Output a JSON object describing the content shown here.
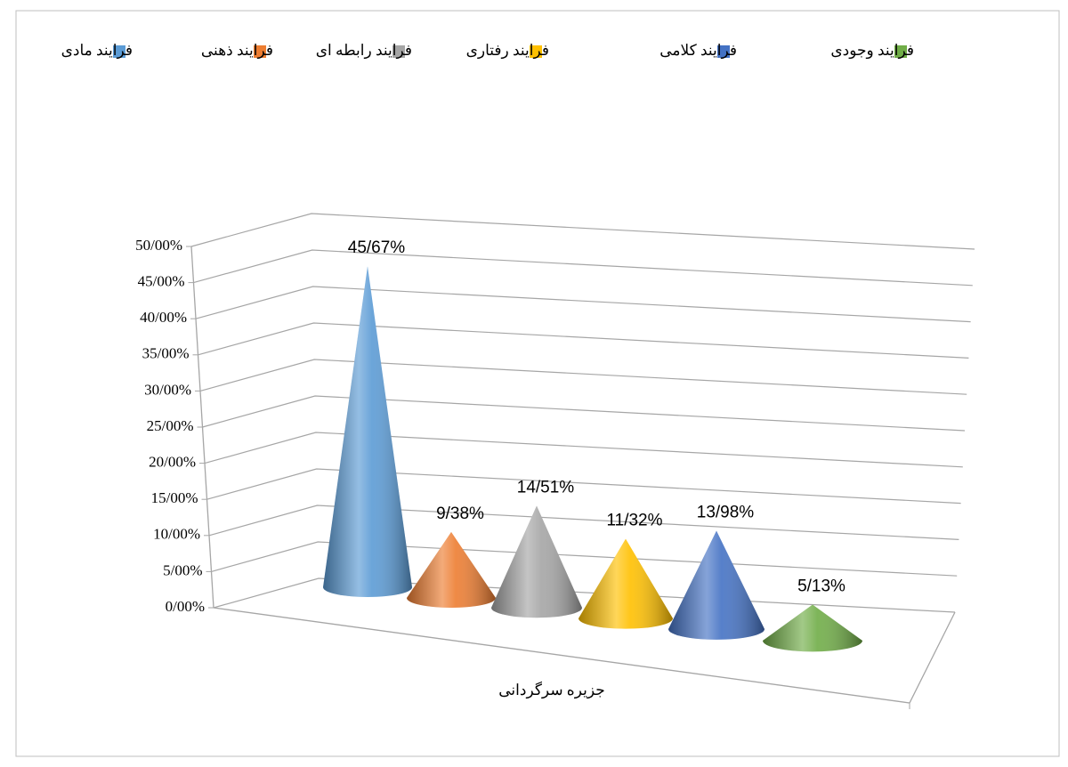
{
  "chart_data": {
    "type": "cone3d",
    "categories": [
      "جزیره سرگردانی"
    ],
    "series": [
      {
        "name": "فرایند مادی",
        "color": "#5b9bd5",
        "values": [
          45.67
        ],
        "value_labels": [
          "45/67%"
        ]
      },
      {
        "name": "فرایند ذهنی",
        "color": "#ed7d31",
        "values": [
          9.38
        ],
        "value_labels": [
          "9/38%"
        ]
      },
      {
        "name": "فرایند رابطه ای",
        "color": "#a5a5a5",
        "values": [
          14.51
        ],
        "value_labels": [
          "14/51%"
        ]
      },
      {
        "name": "فرایند رفتاری",
        "color": "#ffc000",
        "values": [
          11.32
        ],
        "value_labels": [
          "11/32%"
        ]
      },
      {
        "name": "فرایند کلامی",
        "color": "#4472c4",
        "values": [
          13.98
        ],
        "value_labels": [
          "13/98%"
        ]
      },
      {
        "name": "فرایند وجودی",
        "color": "#70ad47",
        "values": [
          5.13
        ],
        "value_labels": [
          "5/13%"
        ]
      }
    ],
    "ylim": [
      0,
      50
    ],
    "yticks": [
      {
        "value": 0,
        "label": "0/00%"
      },
      {
        "value": 5,
        "label": "5/00%"
      },
      {
        "value": 10,
        "label": "10/00%"
      },
      {
        "value": 15,
        "label": "15/00%"
      },
      {
        "value": 20,
        "label": "20/00%"
      },
      {
        "value": 25,
        "label": "25/00%"
      },
      {
        "value": 30,
        "label": "30/00%"
      },
      {
        "value": 35,
        "label": "35/00%"
      },
      {
        "value": 40,
        "label": "40/00%"
      },
      {
        "value": 45,
        "label": "45/00%"
      },
      {
        "value": 50,
        "label": "50/00%"
      }
    ],
    "grid": true,
    "legend": "top"
  }
}
